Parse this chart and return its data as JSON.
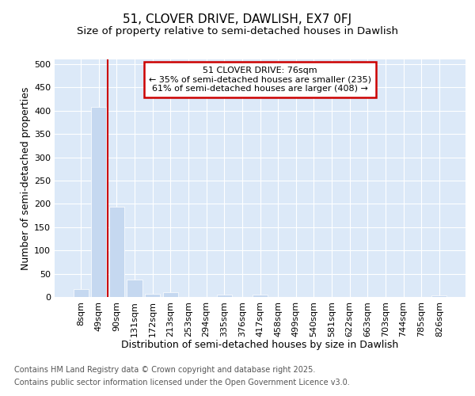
{
  "title": "51, CLOVER DRIVE, DAWLISH, EX7 0FJ",
  "subtitle": "Size of property relative to semi-detached houses in Dawlish",
  "xlabel": "Distribution of semi-detached houses by size in Dawlish",
  "ylabel": "Number of semi-detached properties",
  "categories": [
    "8sqm",
    "49sqm",
    "90sqm",
    "131sqm",
    "172sqm",
    "213sqm",
    "253sqm",
    "294sqm",
    "335sqm",
    "376sqm",
    "417sqm",
    "458sqm",
    "499sqm",
    "540sqm",
    "581sqm",
    "622sqm",
    "663sqm",
    "703sqm",
    "744sqm",
    "785sqm",
    "826sqm"
  ],
  "values": [
    17,
    408,
    193,
    37,
    7,
    10,
    0,
    0,
    5,
    0,
    5,
    0,
    0,
    0,
    0,
    0,
    0,
    0,
    0,
    0,
    4
  ],
  "bar_color": "#c5d8f0",
  "bar_edge_color": "#c5d8f0",
  "vline_x": 1.5,
  "vline_color": "#cc0000",
  "annotation_title": "51 CLOVER DRIVE: 76sqm",
  "annotation_line1": "← 35% of semi-detached houses are smaller (235)",
  "annotation_line2": "61% of semi-detached houses are larger (408) →",
  "annotation_box_color": "#cc0000",
  "ylim": [
    0,
    510
  ],
  "yticks": [
    0,
    50,
    100,
    150,
    200,
    250,
    300,
    350,
    400,
    450,
    500
  ],
  "plot_bg_color": "#dce9f8",
  "grid_color": "#ffffff",
  "footer_line1": "Contains HM Land Registry data © Crown copyright and database right 2025.",
  "footer_line2": "Contains public sector information licensed under the Open Government Licence v3.0.",
  "title_fontsize": 11,
  "subtitle_fontsize": 9.5,
  "axis_label_fontsize": 9,
  "tick_fontsize": 8,
  "footer_fontsize": 7
}
